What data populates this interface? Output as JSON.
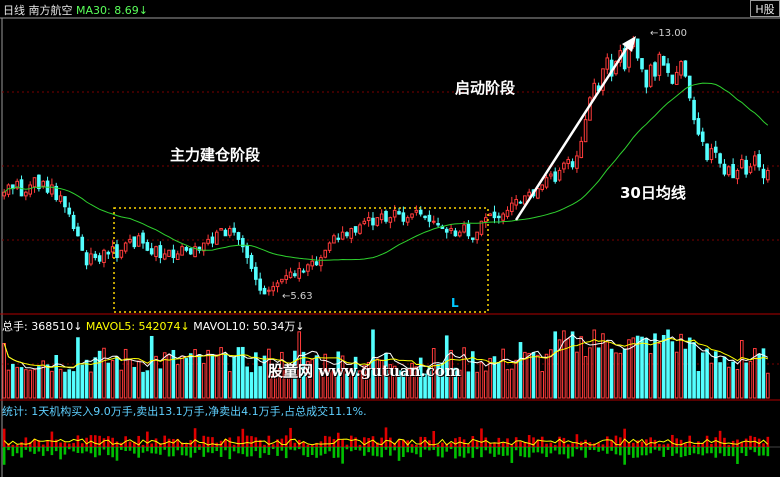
{
  "header": {
    "period": "日线",
    "stock_name": "南方航空",
    "ma_label": "MA30: 8.69↓",
    "market_button": "H股"
  },
  "annotations": {
    "build_phase": "主力建仓阶段",
    "launch_phase": "启动阶段",
    "ma30_label": "30日均线",
    "low_price": "5.63",
    "high_price": "13.00",
    "box_marker": "L"
  },
  "volume_panel": {
    "total_label": "总手: 368510↓",
    "mavol5_label": "MAVOL5: 542074↓",
    "mavol10_label": "MAVOL10: 50.34万↓"
  },
  "stats_panel": {
    "text": "统计: 1天机构买入9.0万手,卖出13.1万手,净卖出4.1万手,占总成交11.1%."
  },
  "watermark": "股童网 www.gutuan.com",
  "colors": {
    "background": "#000000",
    "up": "#ff3b3b",
    "down": "#54ffff",
    "ma30": "#2fd12f",
    "box": "#ffd700",
    "volume_ma5": "#ffffff",
    "volume_ma10": "#ffff00",
    "grid": "#7a0000"
  },
  "chart_data": {
    "type": "candlestick",
    "price_range": [
      5.3,
      13.4
    ],
    "low_point": 5.63,
    "high_point": 13.0,
    "ma30_current": 8.69,
    "closes": [
      8.6,
      8.8,
      8.7,
      8.9,
      8.5,
      8.6,
      8.8,
      9.0,
      8.7,
      8.9,
      8.6,
      8.8,
      8.4,
      8.5,
      8.2,
      8.0,
      7.6,
      7.4,
      7.0,
      6.6,
      6.9,
      6.8,
      6.7,
      7.0,
      6.9,
      7.1,
      6.8,
      7.0,
      7.2,
      7.3,
      7.1,
      7.4,
      7.2,
      7.0,
      6.9,
      7.1,
      6.8,
      6.9,
      7.0,
      6.8,
      6.9,
      7.1,
      7.0,
      6.9,
      7.1,
      7.0,
      7.2,
      7.3,
      7.2,
      7.5,
      7.6,
      7.4,
      7.6,
      7.5,
      7.3,
      7.1,
      6.8,
      6.5,
      6.2,
      5.9,
      5.8,
      5.9,
      6.0,
      6.1,
      6.2,
      6.3,
      6.4,
      6.3,
      6.5,
      6.4,
      6.6,
      6.7,
      6.6,
      6.8,
      7.0,
      7.2,
      7.4,
      7.3,
      7.5,
      7.4,
      7.6,
      7.5,
      7.7,
      7.8,
      7.9,
      7.7,
      7.9,
      8.0,
      7.8,
      7.9,
      8.1,
      8.0,
      7.8,
      7.9,
      8.0,
      8.1,
      8.0,
      7.9,
      7.8,
      7.8,
      7.7,
      7.6,
      7.5,
      7.6,
      7.4,
      7.5,
      7.7,
      7.4,
      7.3,
      7.5,
      7.8,
      7.9,
      8.0,
      7.9,
      7.9,
      8.0,
      8.1,
      8.3,
      8.4,
      8.3,
      8.5,
      8.6,
      8.5,
      8.7,
      8.8,
      9.0,
      9.1,
      8.9,
      9.2,
      9.4,
      9.5,
      9.3,
      9.6,
      10.0,
      10.6,
      11.2,
      11.6,
      11.4,
      12.0,
      12.3,
      11.8,
      12.2,
      12.5,
      12.0,
      12.6,
      12.8,
      12.3,
      12.0,
      11.5,
      12.1,
      11.8,
      12.4,
      12.1,
      11.9,
      11.6,
      11.9,
      12.2,
      11.8,
      11.2,
      10.6,
      10.2,
      10.0,
      9.5,
      9.8,
      9.7,
      9.4,
      9.1,
      9.3,
      9.0,
      9.2,
      9.5,
      9.1,
      9.3,
      9.6,
      9.3,
      9.0,
      9.2
    ]
  }
}
